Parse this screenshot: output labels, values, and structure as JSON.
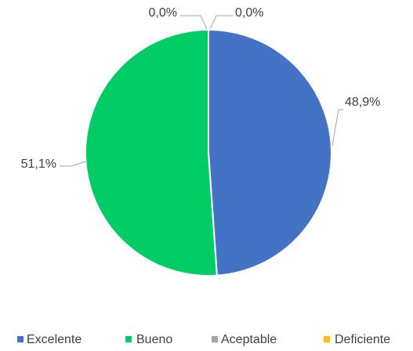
{
  "chart_data": {
    "type": "pie",
    "categories": [
      "Excelente",
      "Bueno",
      "Aceptable",
      "Deficiente"
    ],
    "values": [
      48.9,
      51.1,
      0.0,
      0.0
    ],
    "value_labels": [
      "48,9%",
      "51,1%",
      "0,0%",
      "0,0%"
    ],
    "colors": [
      "#4472c4",
      "#00cc66",
      "#a5a5a5",
      "#ffc000"
    ],
    "legend": "bottom"
  }
}
